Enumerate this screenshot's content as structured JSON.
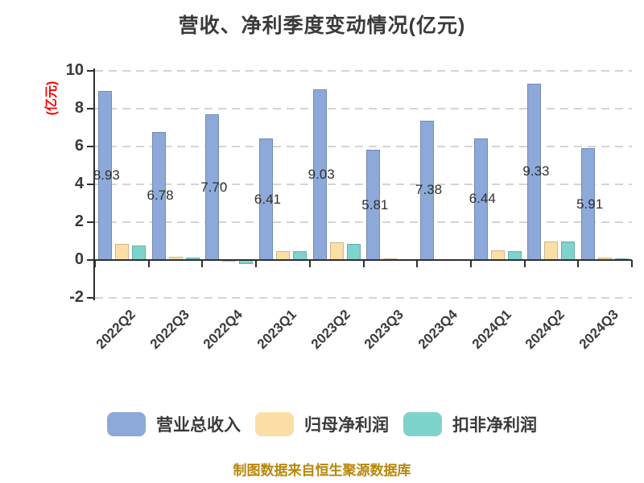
{
  "title": "营收、净利季度变动情况(亿元)",
  "y_axis_label": "(亿元)",
  "footer": "制图数据来自恒生聚源数据库",
  "colors": {
    "revenue": "#8DA9D9",
    "net_profit": "#FCDFA6",
    "deducted_net_profit": "#7FD3CD",
    "title_text": "#3A3A3A",
    "axis_text": "#3A3A3A",
    "y_axis_label": "#FF0000",
    "footer_text": "#B8860B",
    "gridline": "#D4D4D4",
    "axis_line": "#2F2F2F"
  },
  "chart_data": {
    "type": "bar",
    "title": "营收、净利季度变动情况(亿元)",
    "xlabel": "",
    "ylabel": "(亿元)",
    "categories": [
      "2022Q2",
      "2022Q3",
      "2022Q4",
      "2023Q1",
      "2023Q2",
      "2023Q3",
      "2023Q4",
      "2024Q1",
      "2024Q2",
      "2024Q3"
    ],
    "series": [
      {
        "key": "revenue",
        "name": "营业总收入",
        "color": "#8DA9D9",
        "values": [
          8.93,
          6.78,
          7.7,
          6.41,
          9.03,
          5.81,
          7.38,
          6.44,
          9.33,
          5.91
        ],
        "data_labels": true
      },
      {
        "key": "net-profit",
        "name": "归母净利润",
        "color": "#FCDFA6",
        "values": [
          0.85,
          0.16,
          -0.02,
          0.47,
          0.92,
          0.08,
          0.05,
          0.5,
          0.97,
          0.13
        ],
        "data_labels": false
      },
      {
        "key": "deducted-net-profit",
        "name": "扣非净利润",
        "color": "#7FD3CD",
        "values": [
          0.78,
          0.12,
          -0.2,
          0.45,
          0.85,
          0.06,
          0.06,
          0.45,
          1.0,
          0.1
        ],
        "data_labels": false
      }
    ],
    "ylim": [
      -2,
      10
    ],
    "yticks": [
      10,
      8,
      6,
      4,
      2,
      0,
      -2
    ],
    "grid": "horizontal-dashed",
    "legend_position": "bottom"
  }
}
